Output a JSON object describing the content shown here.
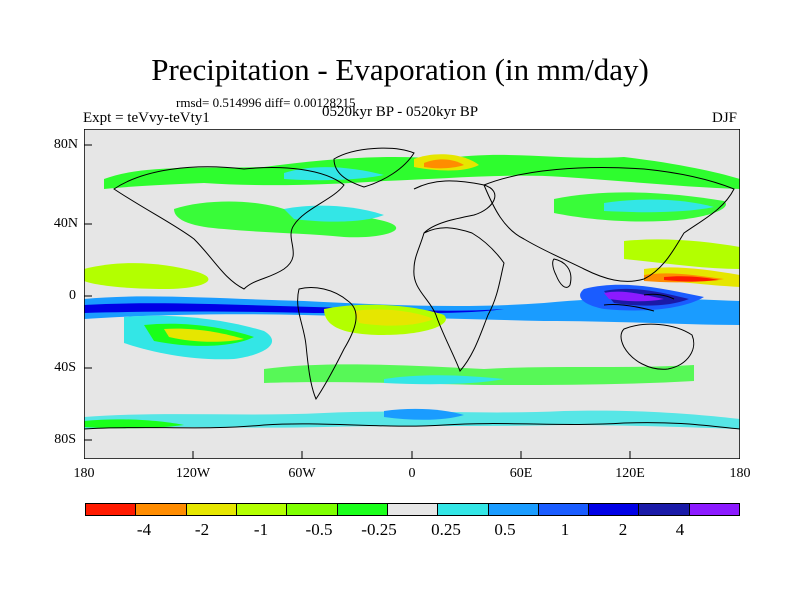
{
  "title": "Precipitation - Evaporation (in mm/day)",
  "stats": "rmsd= 0.514996 diff= 0.00128215",
  "experiment": "Expt = teVvy-teVty1",
  "period": "0520kyr BP - 0520kyr BP",
  "season": "DJF",
  "axes": {
    "y_ticks": [
      "80N",
      "40N",
      "0",
      "40S",
      "80S"
    ],
    "x_ticks": [
      "180",
      "120W",
      "60W",
      "0",
      "60E",
      "120E",
      "180"
    ]
  },
  "colorbar": {
    "colors": [
      "#ff1a00",
      "#ff8c00",
      "#e6e600",
      "#b3ff00",
      "#7fff00",
      "#1aff1a",
      "#e6e6e6",
      "#33e6e6",
      "#1a9cff",
      "#1a5cff",
      "#0000e6",
      "#1a1aa8",
      "#8c1aff"
    ],
    "labels": [
      "-4",
      "-2",
      "-1",
      "-0.5",
      "-0.25",
      "0.25",
      "0.5",
      "1",
      "2",
      "4"
    ]
  }
}
